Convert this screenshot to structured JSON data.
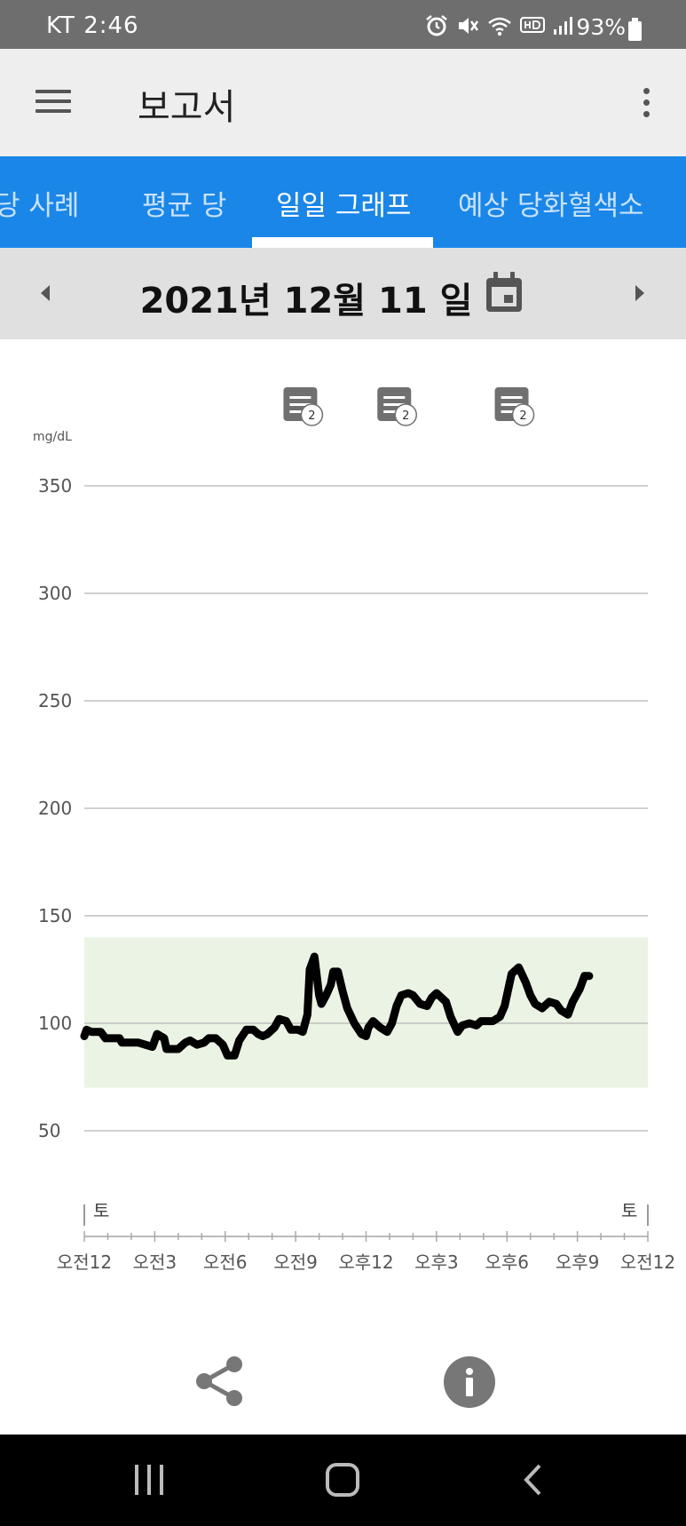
{
  "status_bar": {
    "carrier": "KT",
    "time": "2:46",
    "battery": "93%",
    "icons": [
      "alarm-icon",
      "mute-icon",
      "wifi-icon",
      "hd-icon",
      "signal-icon",
      "battery-icon"
    ]
  },
  "app_bar": {
    "title": "보고서",
    "menu_icon": "hamburger-menu-icon",
    "more_icon": "more-vert-icon"
  },
  "tabs": [
    {
      "label": "저혈당 사례",
      "active": false
    },
    {
      "label": "평균 당",
      "active": false
    },
    {
      "label": "일일 그래프",
      "active": true
    },
    {
      "label": "예상 당화혈색소",
      "active": false
    }
  ],
  "date_bar": {
    "date": "2021년 12월 11 일",
    "prev_icon": "arrow-left-icon",
    "next_icon": "arrow-right-icon",
    "calendar_icon": "calendar-icon"
  },
  "chart_data": {
    "type": "line",
    "ylabel": "mg/dL",
    "ylim": [
      50,
      350
    ],
    "yticks": [
      350,
      300,
      250,
      200,
      150,
      100,
      50
    ],
    "target_range": [
      70,
      140
    ],
    "target_range_color": "#ebf4e4",
    "line_color": "#000000",
    "day_markers": [
      "토",
      "토"
    ],
    "x_ticks": [
      "오전12",
      "오전3",
      "오전6",
      "오전9",
      "오후12",
      "오후3",
      "오후6",
      "오후9",
      "오전12"
    ],
    "x_range_hours": [
      0,
      24
    ],
    "notes": [
      {
        "hour": 9.2,
        "count": "2"
      },
      {
        "hour": 13.2,
        "count": "2"
      },
      {
        "hour": 18.2,
        "count": "2"
      }
    ],
    "series": [
      {
        "x": [
          0.0,
          0.1,
          0.3,
          0.7,
          0.9,
          1.1,
          1.5,
          1.6,
          2.0,
          2.3,
          2.6,
          2.9,
          3.1,
          3.4,
          3.5,
          3.7,
          4.0,
          4.3,
          4.5,
          4.8,
          5.1,
          5.3,
          5.6,
          5.9,
          6.1,
          6.4,
          6.6,
          6.9,
          7.2,
          7.4,
          7.6,
          7.8,
          8.1,
          8.3,
          8.6,
          8.8,
          9.1,
          9.3,
          9.5,
          9.6,
          9.8,
          10.0,
          10.1,
          10.3,
          10.5,
          10.6,
          10.8,
          11.0,
          11.2,
          11.5,
          11.8,
          12.0,
          12.1,
          12.3,
          12.6,
          12.9,
          13.1,
          13.3,
          13.5,
          13.8,
          14.0,
          14.3,
          14.6,
          14.8,
          15.0,
          15.4,
          15.6,
          15.9,
          16.1,
          16.4,
          16.7,
          16.9,
          17.2,
          17.4,
          17.7,
          17.9,
          18.2,
          18.5,
          18.8,
          19.0,
          19.2,
          19.5,
          19.8,
          20.1,
          20.3,
          20.6,
          20.8,
          21.1,
          21.3,
          21.5
        ],
        "values": [
          94,
          97,
          96,
          96,
          93,
          93,
          93,
          91,
          91,
          91,
          90,
          89,
          95,
          93,
          88,
          88,
          88,
          91,
          92,
          90,
          91,
          93,
          93,
          90,
          85,
          85,
          92,
          97,
          97,
          95,
          94,
          95,
          98,
          102,
          101,
          97,
          97,
          96,
          104,
          125,
          131,
          113,
          109,
          113,
          118,
          124,
          124,
          115,
          107,
          100,
          95,
          94,
          98,
          101,
          98,
          96,
          100,
          108,
          113,
          114,
          113,
          109,
          108,
          112,
          114,
          110,
          103,
          96,
          99,
          100,
          99,
          101,
          101,
          101,
          103,
          108,
          123,
          126,
          119,
          113,
          109,
          107,
          110,
          109,
          106,
          104,
          110,
          116,
          122,
          122
        ]
      }
    ]
  },
  "actions": {
    "share_icon": "share-icon",
    "info_icon": "info-icon"
  },
  "nav_bar": {
    "recent_icon": "recent-apps-icon",
    "home_icon": "home-icon",
    "back_icon": "back-icon"
  }
}
